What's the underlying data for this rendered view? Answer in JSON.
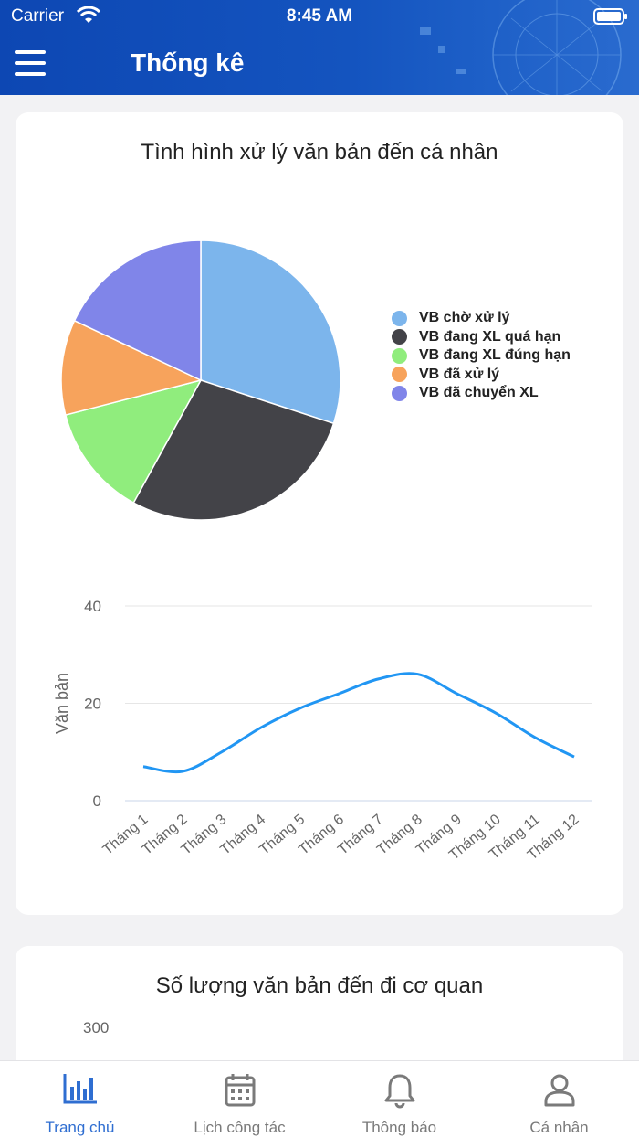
{
  "status_bar": {
    "carrier": "Carrier",
    "time": "8:45 AM"
  },
  "header": {
    "title": "Thống kê",
    "menu_icon": "hamburger-menu-icon"
  },
  "card1": {
    "title": "Tình hình xử lý văn bản đến cá nhân",
    "pie_chart": {
      "type": "pie",
      "labels": [
        "VB chờ xử lý",
        "VB đang XL quá hạn",
        "VB đang XL đúng hạn",
        "VB đã xử lý",
        "VB đã chuyển XL"
      ],
      "values": [
        30,
        28,
        13,
        11,
        18
      ],
      "colors": [
        "#7cb5ec",
        "#434348",
        "#90ed7d",
        "#f7a35c",
        "#8085e9"
      ],
      "legend_position": "right"
    },
    "line_chart": {
      "type": "line",
      "ylabel": "Văn bản",
      "ylim": [
        0,
        40
      ],
      "y_ticks": [
        "0",
        "20",
        "40"
      ],
      "categories": [
        "Tháng 1",
        "Tháng 2",
        "Tháng 3",
        "Tháng 4",
        "Tháng 5",
        "Tháng 6",
        "Tháng 7",
        "Tháng 8",
        "Tháng 9",
        "Tháng 10",
        "Tháng 11",
        "Tháng 12"
      ],
      "values": [
        7,
        6,
        10,
        15,
        19,
        22,
        25,
        26,
        22,
        18,
        13,
        9
      ],
      "color": "#2196f3",
      "grid": true
    }
  },
  "card2": {
    "title": "Số lượng văn bản đến đi cơ quan",
    "y_tick_top": "300"
  },
  "tabbar": {
    "tabs": [
      {
        "label": "Trang chủ",
        "icon": "bar-chart-icon",
        "active": true
      },
      {
        "label": "Lịch công tác",
        "icon": "calendar-icon",
        "active": false
      },
      {
        "label": "Thông báo",
        "icon": "bell-icon",
        "active": false
      },
      {
        "label": "Cá nhân",
        "icon": "user-icon",
        "active": false
      }
    ]
  },
  "colors": {
    "header": "#1454bf",
    "accent": "#2f6ed1",
    "inactive": "#7a7a7a"
  }
}
